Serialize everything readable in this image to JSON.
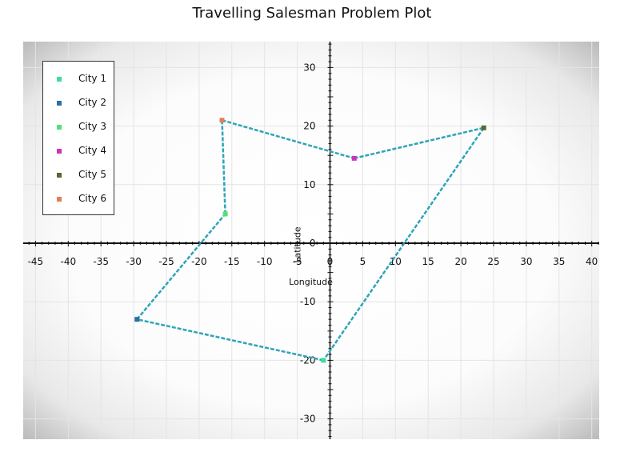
{
  "chart_data": {
    "type": "scatter",
    "title": "Travelling Salesman Problem Plot",
    "xlabel": "Longitude",
    "ylabel": "Latitude",
    "xlim": [
      -47,
      41
    ],
    "ylim": [
      -34,
      35
    ],
    "xticks": [
      -45,
      -40,
      -35,
      -30,
      -25,
      -20,
      -15,
      -10,
      -5,
      0,
      5,
      10,
      15,
      20,
      25,
      30,
      35,
      40
    ],
    "yticks": [
      -30,
      -20,
      -10,
      0,
      10,
      20,
      30
    ],
    "grid": true,
    "legend_placement": "top-left",
    "route_color": "#2fa4b8",
    "series": [
      {
        "name": "City 1",
        "color": "#3dde9a",
        "x": [
          -1.0
        ],
        "y": [
          -20.0
        ]
      },
      {
        "name": "City 2",
        "color": "#2c6fa6",
        "x": [
          -29.5
        ],
        "y": [
          -13.0
        ]
      },
      {
        "name": "City 3",
        "color": "#52e07a",
        "x": [
          -16.0
        ],
        "y": [
          5.0
        ]
      },
      {
        "name": "City 4",
        "color": "#cc33bb",
        "x": [
          3.7
        ],
        "y": [
          14.5
        ]
      },
      {
        "name": "City 5",
        "color": "#556b2f",
        "x": [
          23.5
        ],
        "y": [
          19.7
        ]
      },
      {
        "name": "City 6",
        "color": "#e0805a",
        "x": [
          -16.5
        ],
        "y": [
          21.0
        ]
      }
    ],
    "route_order": [
      "City 1",
      "City 2",
      "City 3",
      "City 6",
      "City 4",
      "City 5",
      "City 1"
    ]
  }
}
